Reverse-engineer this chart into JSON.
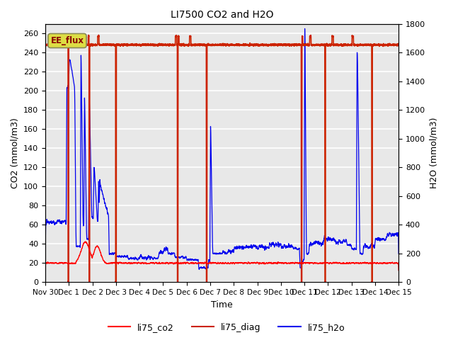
{
  "title": "LI7500 CO2 and H2O",
  "ylabel_left": "CO2 (mmol/m3)",
  "ylabel_right": "H2O (mmol/m3)",
  "xlabel": "Time",
  "ylim_left": [
    0,
    270
  ],
  "ylim_right": [
    0,
    1800
  ],
  "yticks_left": [
    0,
    20,
    40,
    60,
    80,
    100,
    120,
    140,
    160,
    180,
    200,
    220,
    240,
    260
  ],
  "yticks_right": [
    0,
    200,
    400,
    600,
    800,
    1000,
    1200,
    1400,
    1600,
    1800
  ],
  "xtick_labels": [
    "Nov 30",
    "Dec 1",
    "Dec 2",
    "Dec 3",
    "Dec 4",
    "Dec 5",
    "Dec 6",
    "Dec 7",
    "Dec 8",
    "Dec 9",
    "Dec 10",
    "Dec 11",
    "Dec 12",
    "Dec 13",
    "Dec 14",
    "Dec 15"
  ],
  "color_co2": "#FF0000",
  "color_diag": "#CC2200",
  "color_h2o": "#0000EE",
  "background_color": "#E8E8E8",
  "grid_color": "#FFFFFF",
  "annotation_text": "EE_flux",
  "legend_entries": [
    "li75_co2",
    "li75_diag",
    "li75_h2o"
  ],
  "legend_colors": [
    "#FF0000",
    "#CC2200",
    "#0000EE"
  ],
  "seed": 42,
  "n_points": 5000,
  "diag_base": 248,
  "co2_base": 20,
  "h2o_base_mmol": 140,
  "scale": 0.15
}
